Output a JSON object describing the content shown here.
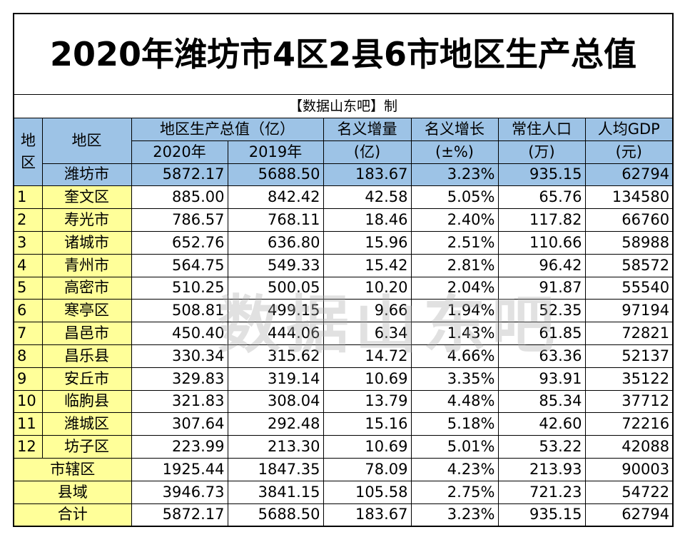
{
  "title": "2020年潍坊市4区2县6市地区生产总值",
  "source": "【数据山东吧】制",
  "watermark": "数据山东吧",
  "header": {
    "index": "地区",
    "region": "地区",
    "gdp_group": "地区生产总值（亿）",
    "gdp_2020": "2020年",
    "gdp_2019": "2019年",
    "increase": [
      "名义增量",
      "(亿)"
    ],
    "growth": [
      "名义增长",
      "(±%)"
    ],
    "population": [
      "常住人口",
      "(万)"
    ],
    "per_capita": [
      "人均GDP",
      "(元)"
    ]
  },
  "total_row": [
    "潍坊市",
    "5872.17",
    "5688.50",
    "183.67",
    "3.23%",
    "935.15",
    "62794"
  ],
  "rows": [
    [
      "1",
      "奎文区",
      "885.00",
      "842.42",
      "42.58",
      "5.05%",
      "65.76",
      "134580"
    ],
    [
      "2",
      "寿光市",
      "786.57",
      "768.11",
      "18.46",
      "2.40%",
      "117.82",
      "66760"
    ],
    [
      "3",
      "诸城市",
      "652.76",
      "636.80",
      "15.96",
      "2.51%",
      "110.66",
      "58988"
    ],
    [
      "4",
      "青州市",
      "564.75",
      "549.33",
      "15.42",
      "2.81%",
      "96.42",
      "58572"
    ],
    [
      "5",
      "高密市",
      "510.25",
      "500.05",
      "10.20",
      "2.04%",
      "91.87",
      "55540"
    ],
    [
      "6",
      "寒亭区",
      "508.81",
      "499.15",
      "9.66",
      "1.94%",
      "52.35",
      "97194"
    ],
    [
      "7",
      "昌邑市",
      "450.40",
      "444.06",
      "6.34",
      "1.43%",
      "61.85",
      "72821"
    ],
    [
      "8",
      "昌乐县",
      "330.34",
      "315.62",
      "14.72",
      "4.66%",
      "63.36",
      "52137"
    ],
    [
      "9",
      "安丘市",
      "329.83",
      "319.14",
      "10.69",
      "3.35%",
      "93.91",
      "35122"
    ],
    [
      "10",
      "临朐县",
      "321.83",
      "308.04",
      "13.79",
      "4.48%",
      "85.34",
      "37712"
    ],
    [
      "11",
      "潍城区",
      "307.64",
      "292.48",
      "15.16",
      "5.18%",
      "42.60",
      "72216"
    ],
    [
      "12",
      "坊子区",
      "223.99",
      "213.30",
      "10.69",
      "5.01%",
      "53.22",
      "42088"
    ]
  ],
  "summary_rows": [
    [
      "市辖区",
      "1925.44",
      "1847.35",
      "78.09",
      "4.23%",
      "213.93",
      "90003"
    ],
    [
      "县域",
      "3946.73",
      "3841.15",
      "105.58",
      "2.75%",
      "721.23",
      "54722"
    ],
    [
      "合计",
      "5872.17",
      "5688.50",
      "183.67",
      "3.23%",
      "935.15",
      "62794"
    ]
  ]
}
